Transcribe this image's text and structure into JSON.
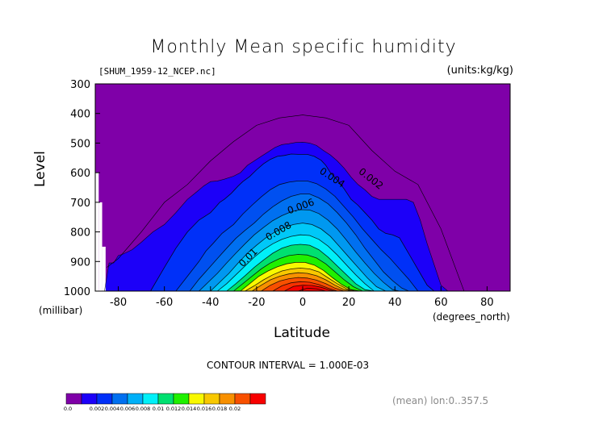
{
  "chart_data": {
    "type": "contour",
    "title": "Monthly Mean specific humidity",
    "file_label": "[SHUM_1959-12_NCEP.nc]",
    "units_label": "(units:kg/kg)",
    "xlabel": "Latitude",
    "ylabel": "Level",
    "x_unit_label": "(degrees_north)",
    "y_unit_label": "(millibar)",
    "xlim": [
      -90,
      90
    ],
    "ylim": [
      1000,
      300
    ],
    "x_ticks": [
      -80,
      -60,
      -40,
      -20,
      0,
      20,
      40,
      60,
      80
    ],
    "y_ticks": [
      300,
      400,
      500,
      600,
      700,
      800,
      900,
      1000
    ],
    "contour_interval_text": "CONTOUR INTERVAL = 1.000E-03",
    "contour_labels": [
      "0.002",
      "0.004",
      "0.006",
      "0.008",
      "0.01"
    ],
    "contour_levels": [
      0.002,
      0.004,
      0.006,
      0.008,
      0.01,
      0.012,
      0.014,
      0.016,
      0.018
    ],
    "thin_contour": {
      "level": 0.001,
      "x": [
        -85,
        -80,
        -70,
        -60,
        -50,
        -40,
        -30,
        -20,
        -10,
        0,
        10,
        20,
        30,
        40,
        50,
        60,
        70,
        80
      ],
      "top": [
        920,
        890,
        800,
        700,
        640,
        560,
        495,
        440,
        415,
        405,
        415,
        440,
        525,
        595,
        640,
        790,
        1000,
        1000
      ]
    },
    "fill_boundaries": [
      {
        "level": 0.001,
        "x": [
          -86,
          -84,
          -82,
          -80,
          -78,
          -74,
          -70,
          -65,
          -60,
          -55,
          -50,
          -46,
          -43,
          -40,
          -37,
          -34,
          -30,
          -27,
          -24,
          -21,
          -18,
          -15,
          -12,
          -9,
          -6,
          -3,
          0,
          3,
          6,
          9,
          12,
          15,
          18,
          21,
          24,
          27,
          30,
          33,
          36,
          39,
          42,
          45,
          48,
          51,
          54,
          57,
          60,
          63
        ],
        "top": [
          1000,
          905,
          905,
          880,
          875,
          860,
          835,
          800,
          775,
          735,
          690,
          665,
          645,
          630,
          628,
          622,
          612,
          600,
          575,
          560,
          545,
          530,
          515,
          505,
          502,
          498,
          497,
          500,
          508,
          525,
          540,
          560,
          585,
          615,
          640,
          658,
          680,
          690,
          690,
          690,
          690,
          690,
          700,
          760,
          840,
          910,
          980,
          1000
        ]
      },
      {
        "level": 0.002,
        "x": [
          -66,
          -60,
          -55,
          -50,
          -45,
          -42,
          -40,
          -38,
          -36,
          -34,
          -31,
          -28,
          -26,
          -23,
          -20,
          -17,
          -14,
          -11,
          -8,
          -5,
          -2,
          0,
          2,
          5,
          8,
          10,
          12,
          15,
          18,
          21,
          24,
          27,
          30,
          33,
          36,
          39,
          42,
          45,
          48,
          51,
          54,
          57,
          60
        ],
        "top": [
          1000,
          920,
          855,
          800,
          760,
          745,
          735,
          718,
          700,
          690,
          670,
          645,
          630,
          613,
          590,
          570,
          555,
          545,
          542,
          537,
          538,
          538,
          538,
          545,
          558,
          575,
          600,
          625,
          655,
          690,
          710,
          735,
          760,
          790,
          805,
          810,
          820,
          860,
          900,
          940,
          980,
          1000,
          1000
        ]
      },
      {
        "level": 0.003,
        "x": [
          -55,
          -50,
          -45,
          -42,
          -39,
          -35,
          -30,
          -26,
          -22,
          -18,
          -14,
          -10,
          -6,
          -2,
          2,
          6,
          10,
          14,
          18,
          22,
          26,
          30,
          34,
          38,
          42,
          46,
          50
        ],
        "top": [
          1000,
          950,
          900,
          865,
          840,
          805,
          775,
          740,
          710,
          682,
          657,
          640,
          632,
          628,
          628,
          637,
          655,
          680,
          715,
          750,
          790,
          825,
          860,
          890,
          925,
          960,
          1000
        ]
      },
      {
        "level": 0.004,
        "x": [
          -49,
          -45,
          -41,
          -37,
          -33,
          -29,
          -25,
          -21,
          -17,
          -13,
          -9,
          -5,
          -1,
          3,
          7,
          11,
          15,
          19,
          23,
          27,
          31,
          35,
          39,
          43,
          46
        ],
        "top": [
          1000,
          960,
          925,
          890,
          855,
          822,
          795,
          770,
          740,
          715,
          695,
          680,
          672,
          672,
          685,
          705,
          735,
          770,
          810,
          855,
          895,
          935,
          965,
          990,
          1000
        ]
      },
      {
        "level": 0.005,
        "x": [
          -45,
          -41,
          -37,
          -33,
          -29,
          -25,
          -21,
          -17,
          -13,
          -9,
          -5,
          -1,
          3,
          7,
          11,
          15,
          19,
          23,
          27,
          31,
          35,
          39,
          42
        ],
        "top": [
          1000,
          970,
          940,
          905,
          872,
          840,
          810,
          785,
          762,
          745,
          732,
          725,
          726,
          738,
          760,
          790,
          828,
          868,
          905,
          940,
          970,
          995,
          1000
        ]
      },
      {
        "level": 0.006,
        "x": [
          -40,
          -36,
          -32,
          -28,
          -24,
          -20,
          -16,
          -12,
          -8,
          -4,
          0,
          4,
          8,
          12,
          16,
          20,
          24,
          28,
          32,
          36,
          38
        ],
        "top": [
          1000,
          970,
          940,
          905,
          872,
          845,
          820,
          800,
          785,
          775,
          770,
          775,
          790,
          815,
          850,
          885,
          920,
          955,
          985,
          1000,
          1000
        ]
      },
      {
        "level": 0.007,
        "x": [
          -37,
          -33,
          -29,
          -25,
          -21,
          -17,
          -13,
          -9,
          -5,
          -1,
          3,
          7,
          11,
          15,
          19,
          23,
          27,
          31,
          34
        ],
        "top": [
          1000,
          975,
          945,
          915,
          885,
          860,
          840,
          825,
          815,
          810,
          812,
          825,
          848,
          878,
          912,
          945,
          975,
          1000,
          1000
        ]
      },
      {
        "level": 0.008,
        "x": [
          -33,
          -29,
          -25,
          -21,
          -17,
          -13,
          -9,
          -5,
          -1,
          3,
          7,
          11,
          15,
          19,
          23,
          27,
          31
        ],
        "top": [
          1000,
          975,
          948,
          920,
          895,
          872,
          855,
          845,
          842,
          845,
          860,
          885,
          915,
          945,
          975,
          995,
          1000
        ]
      },
      {
        "level": 0.009,
        "x": [
          -30,
          -26,
          -22,
          -18,
          -14,
          -10,
          -6,
          -2,
          2,
          6,
          10,
          14,
          18,
          22,
          26,
          29
        ],
        "top": [
          1000,
          975,
          950,
          925,
          905,
          890,
          880,
          876,
          878,
          888,
          908,
          935,
          962,
          985,
          1000,
          1000
        ]
      },
      {
        "level": 0.01,
        "x": [
          -27,
          -23,
          -19,
          -15,
          -11,
          -7,
          -3,
          1,
          5,
          9,
          13,
          17,
          21,
          25,
          27
        ],
        "top": [
          1000,
          975,
          950,
          932,
          918,
          908,
          903,
          903,
          912,
          930,
          955,
          978,
          995,
          1000,
          1000
        ]
      },
      {
        "level": 0.011,
        "x": [
          -25,
          -21,
          -17,
          -13,
          -9,
          -5,
          -1,
          3,
          7,
          11,
          15,
          19,
          23,
          25
        ],
        "top": [
          1000,
          982,
          962,
          945,
          932,
          925,
          922,
          925,
          935,
          955,
          975,
          992,
          1000,
          1000
        ]
      },
      {
        "level": 0.012,
        "x": [
          -22,
          -18,
          -14,
          -10,
          -6,
          -2,
          2,
          6,
          10,
          14,
          18,
          22
        ],
        "top": [
          1000,
          980,
          962,
          950,
          942,
          938,
          940,
          948,
          962,
          980,
          995,
          1000
        ]
      },
      {
        "level": 0.013,
        "x": [
          -18,
          -14,
          -10,
          -6,
          -2,
          2,
          6,
          10,
          14,
          18,
          20
        ],
        "top": [
          1000,
          980,
          966,
          958,
          954,
          956,
          963,
          975,
          990,
          1000,
          1000
        ]
      },
      {
        "level": 0.014,
        "x": [
          -13,
          -9,
          -5,
          -1,
          3,
          7,
          11,
          15,
          17
        ],
        "top": [
          1000,
          982,
          972,
          968,
          970,
          978,
          990,
          1000,
          1000
        ]
      },
      {
        "level": 0.015,
        "x": [
          -8,
          -4,
          0,
          4,
          8,
          12,
          14
        ],
        "top": [
          1000,
          984,
          980,
          981,
          987,
          997,
          1000
        ]
      },
      {
        "level": 0.016,
        "x": [
          -2,
          2,
          6,
          10
        ],
        "top": [
          1000,
          990,
          992,
          1000
        ]
      }
    ],
    "missing_blocks": [
      {
        "x0": -90,
        "x1": -88.5,
        "p0": 600,
        "p1": 1000
      },
      {
        "x0": -88.5,
        "x1": -87,
        "p0": 700,
        "p1": 1000
      },
      {
        "x0": -87,
        "x1": -85.5,
        "p0": 850,
        "p1": 1000
      }
    ],
    "colorbar": {
      "colors": [
        "#7f00a8",
        "#1c00f8",
        "#0030f8",
        "#0070f0",
        "#00b0f8",
        "#00f0f8",
        "#00e070",
        "#20f000",
        "#f8f800",
        "#f8c800",
        "#f89000",
        "#f85000",
        "#f80000"
      ],
      "labels": [
        "0.0",
        "0.002",
        "0.004",
        "0.006",
        "0.008",
        "0.01",
        "0.012",
        "0.014",
        "0.016",
        "0.018",
        "0.02"
      ]
    },
    "fill_colors": [
      "#7f00a8",
      "#1c00f8",
      "#0030f8",
      "#0050f0",
      "#0070f0",
      "#0098f0",
      "#00c8f8",
      "#00f0f8",
      "#00e070",
      "#20f000",
      "#f8f800",
      "#f8c800",
      "#f89000",
      "#f85000",
      "#f83000",
      "#f80000",
      "#e80000"
    ],
    "footer_text": "(mean) lon:0..357.5"
  }
}
